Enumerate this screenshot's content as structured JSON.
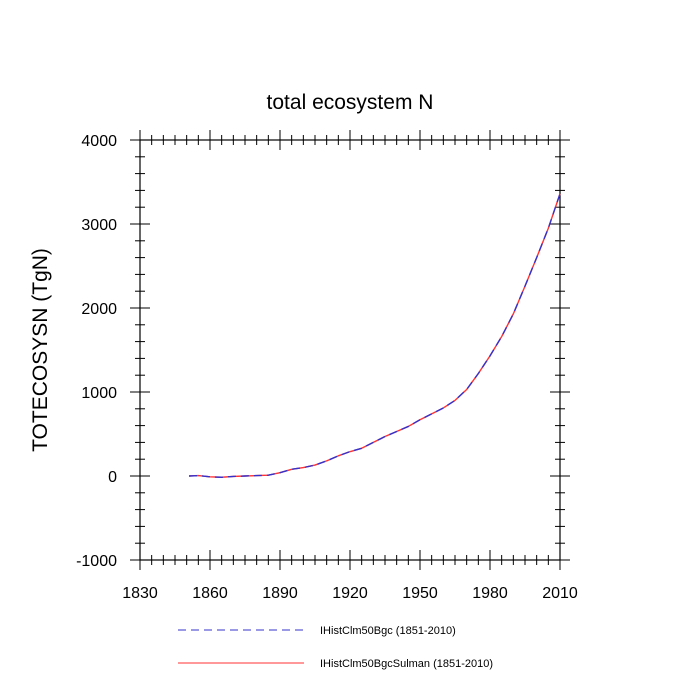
{
  "chart_data": {
    "type": "line",
    "title": "total ecosystem N",
    "xlabel": "",
    "ylabel": "TOTECOSYSN  (TgN)",
    "xlim": [
      1830,
      2010
    ],
    "ylim": [
      -1000,
      4000
    ],
    "xticks": [
      "1830",
      "1860",
      "1890",
      "1920",
      "1950",
      "1980",
      "2010"
    ],
    "yticks": [
      "-1000",
      "0",
      "1000",
      "2000",
      "3000",
      "4000"
    ],
    "grid": false,
    "legend_position": "bottom",
    "x": [
      1851,
      1855,
      1860,
      1865,
      1870,
      1875,
      1880,
      1885,
      1890,
      1895,
      1900,
      1905,
      1910,
      1915,
      1920,
      1925,
      1930,
      1935,
      1940,
      1945,
      1950,
      1955,
      1960,
      1965,
      1970,
      1975,
      1980,
      1985,
      1990,
      1995,
      2000,
      2005,
      2010
    ],
    "series": [
      {
        "name": "IHistClm50Bgc (1851-2010)",
        "color": "#3333cc",
        "dash": true,
        "values": [
          0,
          5,
          -10,
          -15,
          -5,
          0,
          5,
          10,
          40,
          80,
          100,
          130,
          180,
          240,
          290,
          330,
          400,
          470,
          530,
          590,
          670,
          740,
          810,
          900,
          1030,
          1220,
          1430,
          1660,
          1930,
          2260,
          2600,
          2950,
          3360
        ]
      },
      {
        "name": "IHistClm50BgcSulman (1851-2010)",
        "color": "#ff3333",
        "dash": false,
        "values": [
          0,
          5,
          -10,
          -15,
          -5,
          0,
          5,
          10,
          40,
          80,
          100,
          130,
          180,
          240,
          290,
          330,
          400,
          470,
          530,
          590,
          670,
          740,
          810,
          900,
          1030,
          1220,
          1430,
          1660,
          1930,
          2260,
          2600,
          2950,
          3360
        ]
      }
    ]
  }
}
